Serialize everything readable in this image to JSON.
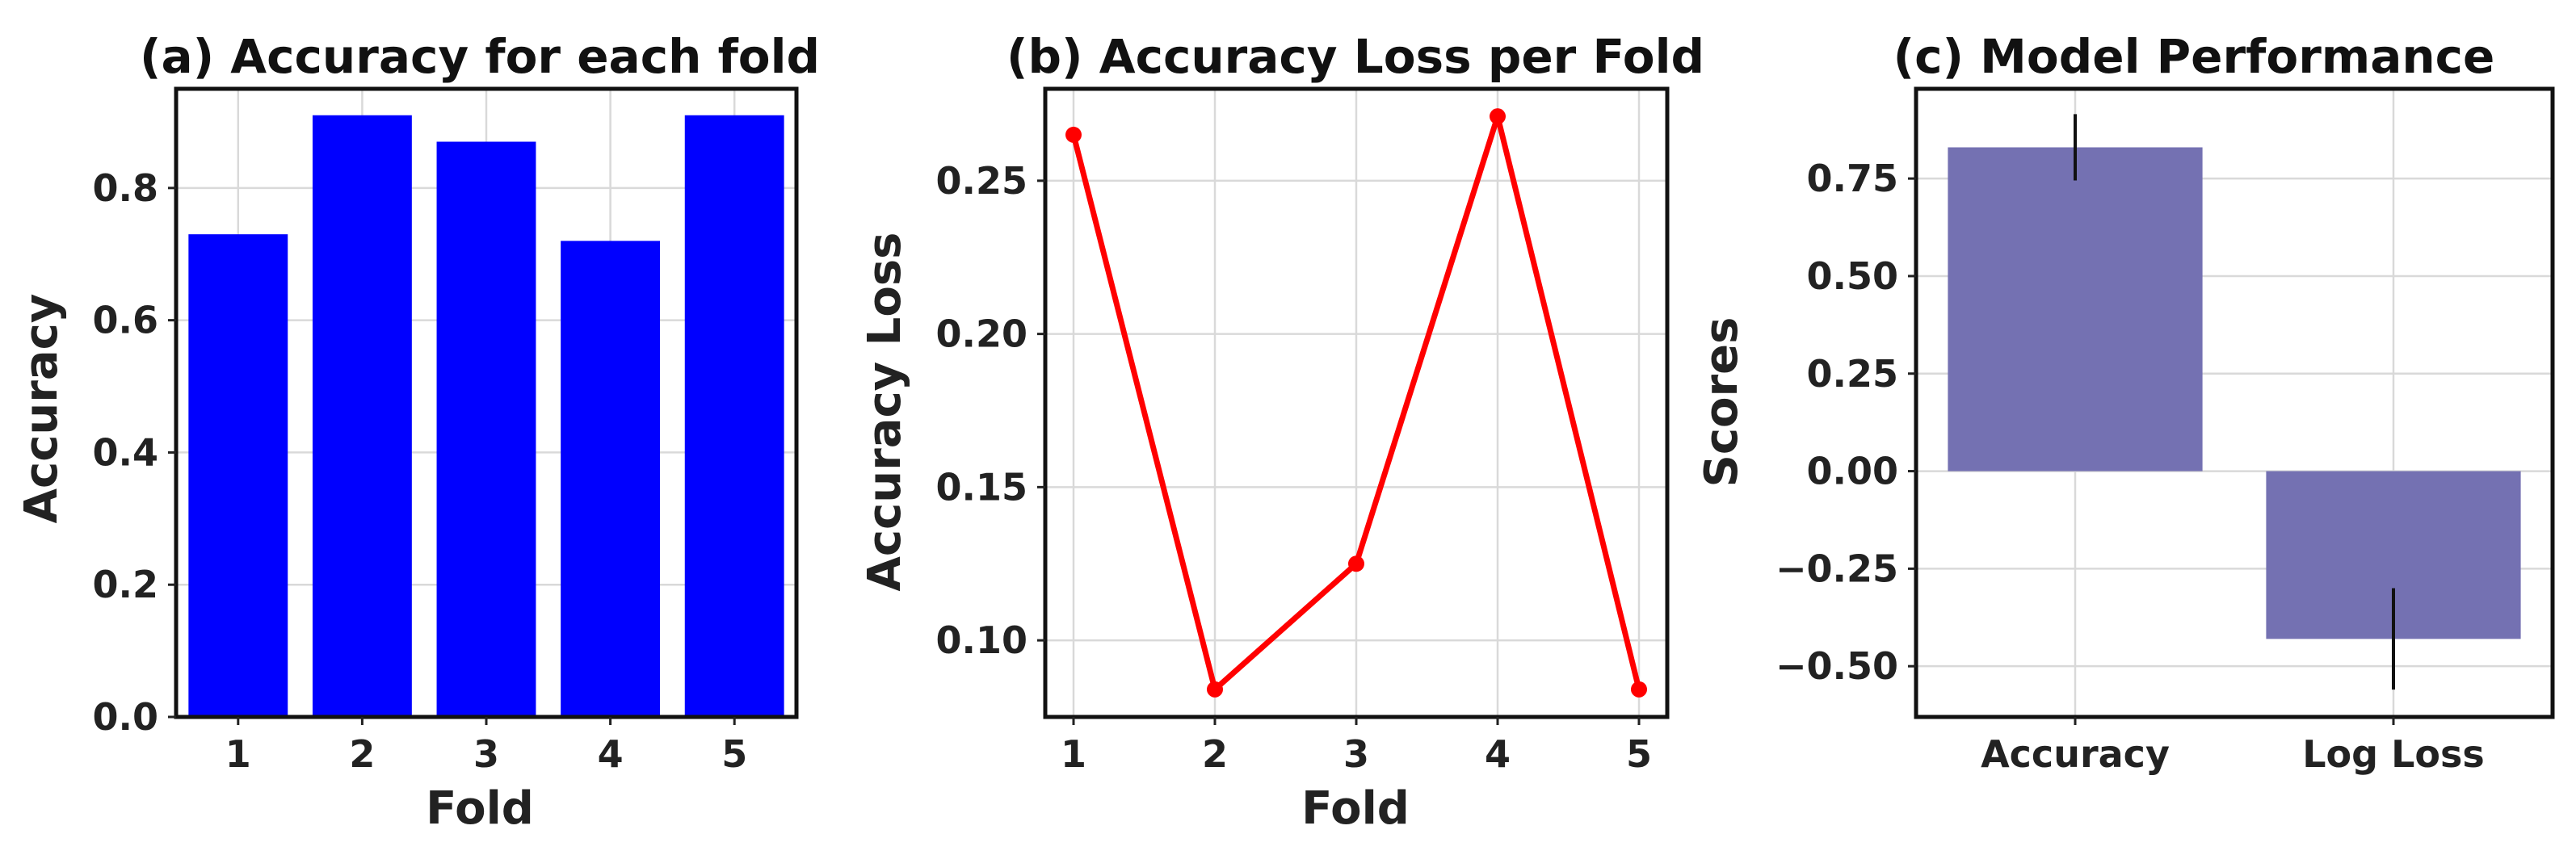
{
  "chart_data": [
    {
      "type": "bar",
      "title": "(a) Accuracy for each fold",
      "xlabel": "Fold",
      "ylabel": "Accuracy",
      "categories": [
        "1",
        "2",
        "3",
        "4",
        "5"
      ],
      "values": [
        0.73,
        0.91,
        0.87,
        0.72,
        0.91
      ],
      "ylim": [
        0,
        0.95
      ],
      "yticks": [
        0.0,
        0.2,
        0.4,
        0.6,
        0.8
      ],
      "ytick_labels": [
        "0.0",
        "0.2",
        "0.4",
        "0.6",
        "0.8"
      ],
      "grid": true,
      "color": "#0000ff"
    },
    {
      "type": "line",
      "title": "(b) Accuracy Loss per Fold",
      "xlabel": "Fold",
      "ylabel": "Accuracy Loss",
      "x": [
        1,
        2,
        3,
        4,
        5
      ],
      "xtick_labels": [
        "1",
        "2",
        "3",
        "4",
        "5"
      ],
      "values": [
        0.265,
        0.084,
        0.125,
        0.271,
        0.084
      ],
      "ylim": [
        0.075,
        0.28
      ],
      "yticks": [
        0.1,
        0.15,
        0.2,
        0.25
      ],
      "ytick_labels": [
        "0.10",
        "0.15",
        "0.20",
        "0.25"
      ],
      "grid": true,
      "color": "#ff0000",
      "marker": "o"
    },
    {
      "type": "bar",
      "title": "(c) Model Performance",
      "xlabel": "",
      "ylabel": "Scores",
      "categories": [
        "Accuracy",
        "Log Loss"
      ],
      "values": [
        0.83,
        -0.43
      ],
      "errors": [
        0.085,
        0.13
      ],
      "ylim": [
        -0.63,
        0.98
      ],
      "yticks": [
        -0.5,
        -0.25,
        0.0,
        0.25,
        0.5,
        0.75
      ],
      "ytick_labels": [
        "−0.50",
        "−0.25",
        "0.00",
        "0.25",
        "0.50",
        "0.75"
      ],
      "grid": true,
      "color": "#7471b2"
    }
  ]
}
